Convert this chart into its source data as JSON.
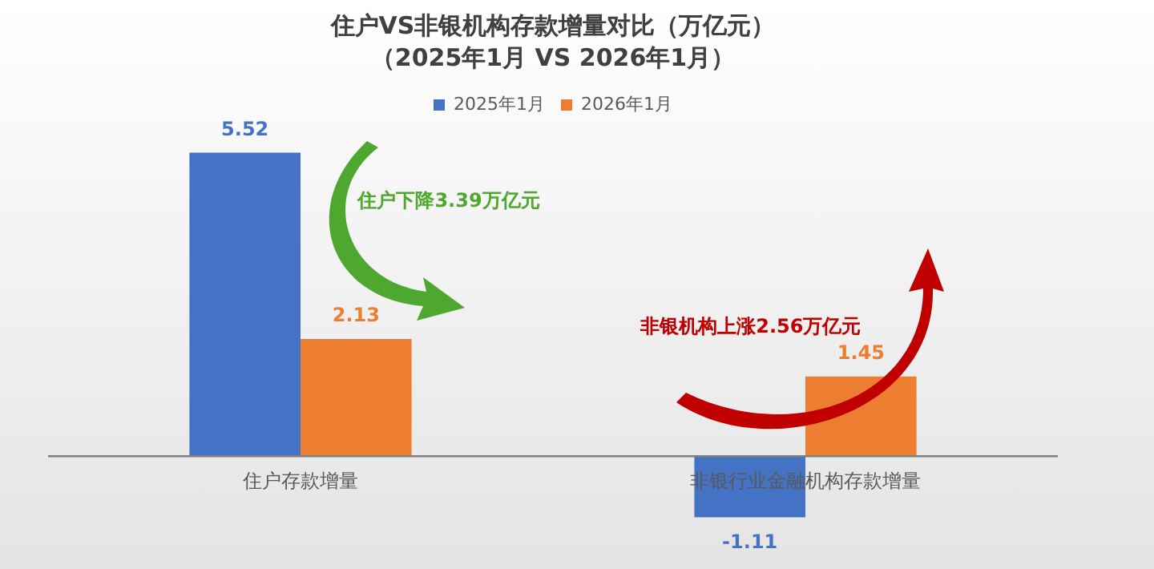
{
  "chart_data": {
    "type": "bar",
    "title": "住户VS非银机构存款增量对比（万亿元）",
    "subtitle": "（2025年1月 VS 2026年1月）",
    "categories": [
      "住户存款增量",
      "非银行业金融机构存款增量"
    ],
    "series": [
      {
        "name": "2025年1月",
        "color": "#4472c4",
        "values": [
          5.52,
          -1.11
        ]
      },
      {
        "name": "2026年1月",
        "color": "#ed7d31",
        "values": [
          2.13,
          1.45
        ]
      }
    ],
    "data_labels": true,
    "legend": "top",
    "grid": false,
    "annotations": [
      "住户下降3.39万亿元",
      "非银机构上涨2.56万亿元"
    ]
  }
}
